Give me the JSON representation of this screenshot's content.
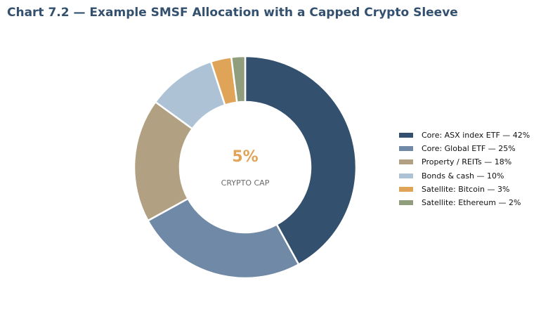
{
  "chart_data": {
    "type": "pie",
    "title": "Chart 7.2 — Example SMSF Allocation with a Capped Crypto Sleeve",
    "donut": true,
    "center_value": "5%",
    "center_label": "CRYPTO CAP",
    "center_value_color": "#e0a458",
    "legend_position": "right",
    "categories": [
      "Core: ASX index ETF — 42%",
      "Core: Global ETF — 25%",
      "Property / REITs — 18%",
      "Bonds & cash — 10%",
      "Satellite: Bitcoin — 3%",
      "Satellite: Ethereum — 2%"
    ],
    "values": [
      42,
      25,
      18,
      10,
      3,
      2
    ],
    "colors": [
      "#33506e",
      "#6f89a6",
      "#b2a082",
      "#aec2d6",
      "#e0a458",
      "#909e7d"
    ]
  }
}
